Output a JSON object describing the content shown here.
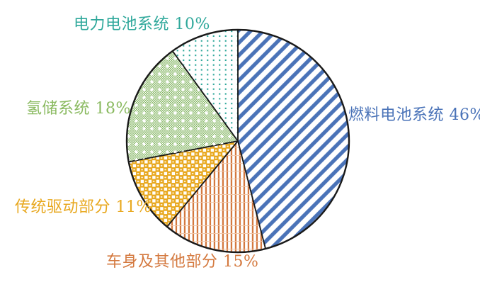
{
  "chart_data": {
    "type": "pie",
    "title": "",
    "direction": "clockwise",
    "start_angle_deg": 0,
    "background": "#ffffff",
    "outline_color": "#1a1a1a",
    "slices": [
      {
        "id": "fuel-cell-system",
        "label": "燃料电池系统",
        "value": 46,
        "display": "燃料电池系统 46%",
        "color": "#4a73b8",
        "pattern": "diagonal-stripes",
        "pattern_id": "pat-fuel",
        "label_position": "right"
      },
      {
        "id": "body-other",
        "label": "车身及其他部分",
        "value": 15,
        "display": "车身及其他部分 15%",
        "color": "#d4793f",
        "pattern": "vertical-stripes",
        "pattern_id": "pat-body",
        "label_position": "bottom"
      },
      {
        "id": "traditional-drive",
        "label": "传统驱动部分",
        "value": 11,
        "display": "传统驱动部分 11%",
        "color": "#e8a81f",
        "pattern": "checkerboard",
        "pattern_id": "pat-drive",
        "label_position": "bottom-left"
      },
      {
        "id": "hydrogen-storage",
        "label": "氢储系统",
        "value": 18,
        "display": "氢储系统 18%",
        "color": "#7db25a",
        "pattern": "fine-checker-with-dots",
        "pattern_id": "pat-h2",
        "overlay_pattern_id": "pat-h2-dots",
        "label_position": "left"
      },
      {
        "id": "power-battery-system",
        "label": "电力电池系统",
        "value": 10,
        "display": "电力电池系统 10%",
        "color": "#2fa89b",
        "pattern": "polka-dot-grid",
        "pattern_id": "pat-battery",
        "label_position": "top"
      }
    ]
  }
}
